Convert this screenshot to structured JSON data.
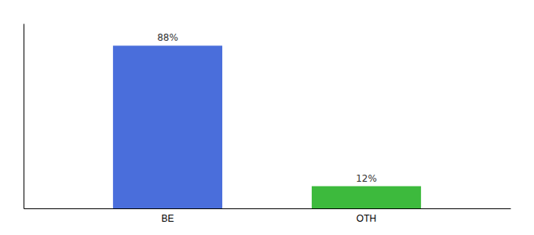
{
  "chart_data": {
    "type": "bar",
    "categories": [
      "BE",
      "OTH"
    ],
    "values": [
      88,
      12
    ],
    "value_labels": [
      "88%",
      "12%"
    ],
    "data_labels": true,
    "colors": [
      "#4a6edb",
      "#3dba3d"
    ],
    "ylim": [
      0,
      100
    ],
    "tick_labels": "x",
    "grid": false
  }
}
